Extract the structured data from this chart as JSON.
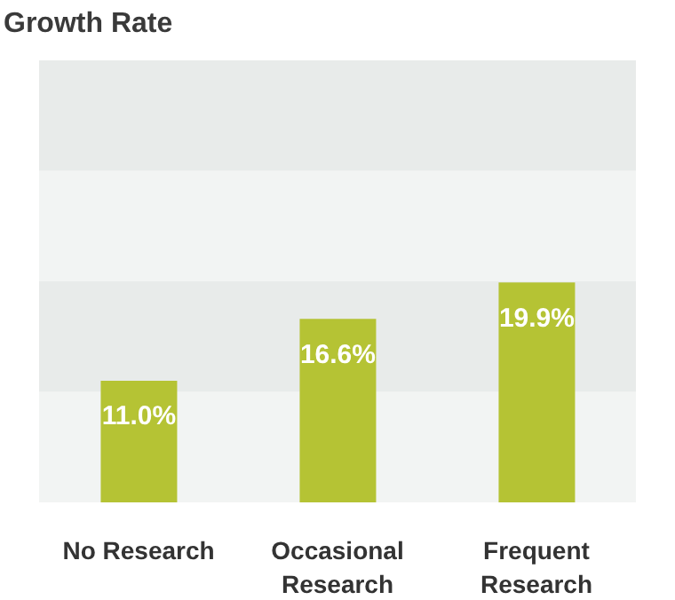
{
  "chart_data": {
    "type": "bar",
    "title": "Growth Rate",
    "categories": [
      "No Research",
      "Occasional Research",
      "Frequent Research"
    ],
    "values": [
      11.0,
      16.6,
      19.9
    ],
    "color": "#b5c334",
    "value_labels": [
      "11.0%",
      "16.6%",
      "19.9%"
    ],
    "ylim": [
      0,
      40
    ],
    "bands": [
      {
        "axis": "y",
        "from": 0,
        "to": 10,
        "color": "#f2f4f3"
      },
      {
        "axis": "y",
        "from": 10,
        "to": 20,
        "color": "#e8ebea"
      },
      {
        "axis": "y",
        "from": 20,
        "to": 30,
        "color": "#f2f4f3"
      },
      {
        "axis": "y",
        "from": 30,
        "to": 40,
        "color": "#e8ebea"
      }
    ]
  }
}
